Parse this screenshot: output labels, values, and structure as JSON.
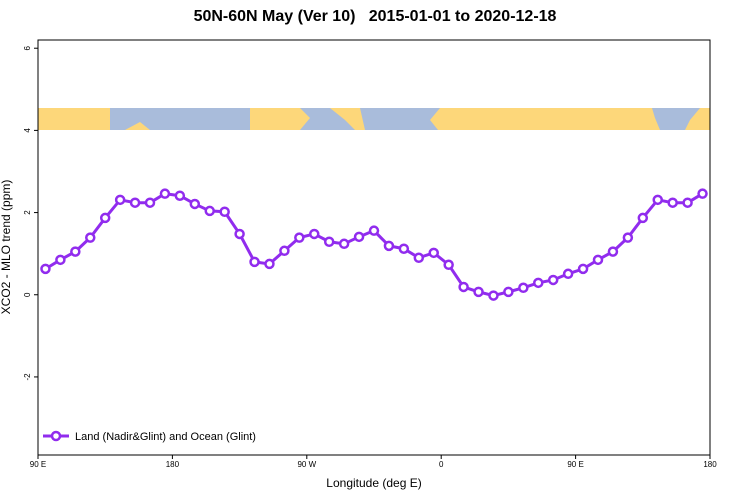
{
  "chart_data": {
    "type": "line",
    "title": "50N-60N May (Ver 10)   2015-01-01 to 2020-12-18",
    "x_label": "Longitude (deg E)",
    "y_label": "XCO2 - MLO trend (ppm)",
    "xlim": [
      90,
      540
    ],
    "ylim": [
      -3.9,
      6.2
    ],
    "xticks": [
      {
        "value": 90,
        "label": "90 E"
      },
      180,
      {
        "value": 270,
        "label": "90 W"
      },
      {
        "value": 360,
        "label": "0"
      },
      {
        "value": 450,
        "label": "90 E"
      },
      {
        "value": 540,
        "label": "180"
      }
    ],
    "yticks": [
      -2,
      0,
      2,
      4,
      6
    ],
    "legend": "bottom left",
    "x": [
      95,
      105,
      115,
      125,
      135,
      145,
      155,
      165,
      175,
      185,
      195,
      205,
      215,
      225,
      235,
      245,
      255,
      265,
      275,
      285,
      295,
      305,
      315,
      325,
      335,
      345,
      355,
      365,
      375,
      385,
      395,
      405,
      415,
      425,
      435,
      445,
      455,
      465,
      475,
      485,
      495,
      505,
      515,
      525,
      535
    ],
    "series": [
      {
        "name": "Land (Nadir&Glint) and Ocean (Glint)",
        "color": "#912cee",
        "values": [
          0.63,
          0.85,
          1.05,
          1.39,
          1.87,
          2.31,
          2.24,
          2.24,
          2.46,
          2.41,
          2.21,
          2.04,
          2.02,
          1.48,
          0.8,
          0.75,
          1.07,
          1.39,
          1.48,
          1.29,
          1.24,
          1.41,
          1.56,
          1.19,
          1.12,
          0.9,
          1.02,
          0.73,
          0.19,
          0.07,
          -0.02,
          0.07,
          0.17,
          0.29,
          0.36,
          0.51,
          0.63,
          0.85,
          1.05,
          1.39,
          1.87,
          2.31,
          2.24,
          2.24,
          2.46
        ]
      }
    ]
  }
}
